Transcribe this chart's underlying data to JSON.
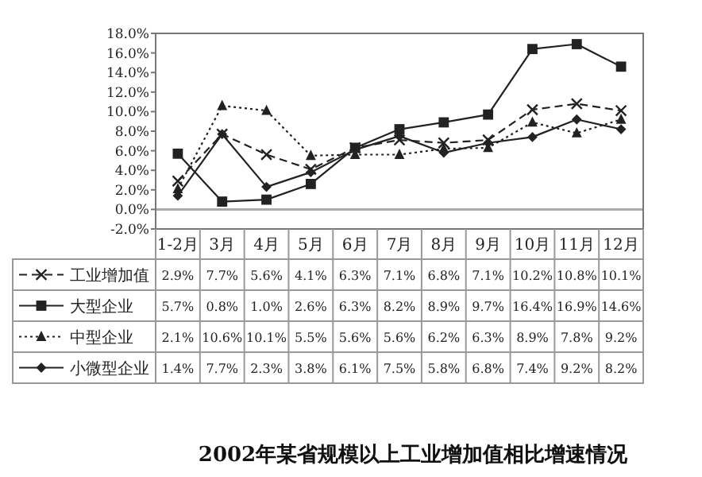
{
  "chart_data": {
    "type": "line",
    "title": "2002年某省规模以上工业增加值相比增速情况",
    "categories": [
      "1-2月",
      "3月",
      "4月",
      "5月",
      "6月",
      "7月",
      "8月",
      "9月",
      "10月",
      "11月",
      "12月"
    ],
    "series": [
      {
        "name": "工业增加值",
        "color": "#222222",
        "marker": "cross",
        "line_style": "dashed",
        "values": [
          2.9,
          7.7,
          5.6,
          4.1,
          6.3,
          7.1,
          6.8,
          7.1,
          10.2,
          10.8,
          10.1
        ],
        "value_labels": [
          "2.9%",
          "7.7%",
          "5.6%",
          "4.1%",
          "6.3%",
          "7.1%",
          "6.8%",
          "7.1%",
          "10.2%",
          "10.8%",
          "10.1%"
        ]
      },
      {
        "name": "大型企业",
        "color": "#222222",
        "marker": "square",
        "line_style": "solid",
        "values": [
          5.7,
          0.8,
          1.0,
          2.6,
          6.3,
          8.2,
          8.9,
          9.7,
          16.4,
          16.9,
          14.6
        ],
        "value_labels": [
          "5.7%",
          "0.8%",
          "1.0%",
          "2.6%",
          "6.3%",
          "8.2%",
          "8.9%",
          "9.7%",
          "16.4%",
          "16.9%",
          "14.6%"
        ]
      },
      {
        "name": "中型企业",
        "color": "#222222",
        "marker": "triangle",
        "line_style": "dotted",
        "values": [
          2.1,
          10.6,
          10.1,
          5.5,
          5.6,
          5.6,
          6.2,
          6.3,
          8.9,
          7.8,
          9.2
        ],
        "value_labels": [
          "2.1%",
          "10.6%",
          "10.1%",
          "5.5%",
          "5.6%",
          "5.6%",
          "6.2%",
          "6.3%",
          "8.9%",
          "7.8%",
          "9.2%"
        ]
      },
      {
        "name": "小微型企业",
        "color": "#222222",
        "marker": "diamond",
        "line_style": "solid",
        "values": [
          1.4,
          7.7,
          2.3,
          3.8,
          6.1,
          7.5,
          5.8,
          6.8,
          7.4,
          9.2,
          8.2
        ],
        "value_labels": [
          "1.4%",
          "7.7%",
          "2.3%",
          "3.8%",
          "6.1%",
          "7.5%",
          "5.8%",
          "6.8%",
          "7.4%",
          "9.2%",
          "8.2%"
        ]
      }
    ],
    "ylim": [
      -2,
      18
    ],
    "yticks": [
      {
        "value": -2,
        "label": "-2.0%"
      },
      {
        "value": 0,
        "label": "0.0%"
      },
      {
        "value": 2,
        "label": "2.0%"
      },
      {
        "value": 4,
        "label": "4.0%"
      },
      {
        "value": 6,
        "label": "6.0%"
      },
      {
        "value": 8,
        "label": "8.0%"
      },
      {
        "value": 10,
        "label": "10.0%"
      },
      {
        "value": 12,
        "label": "12.0%"
      },
      {
        "value": 14,
        "label": "14.0%"
      },
      {
        "value": 16,
        "label": "16.0%"
      },
      {
        "value": 18,
        "label": "18.0%"
      }
    ],
    "ref_lines": [
      {
        "axis": "y",
        "value": 0,
        "color": "#aaaaaa"
      }
    ],
    "legend": "bottom"
  }
}
